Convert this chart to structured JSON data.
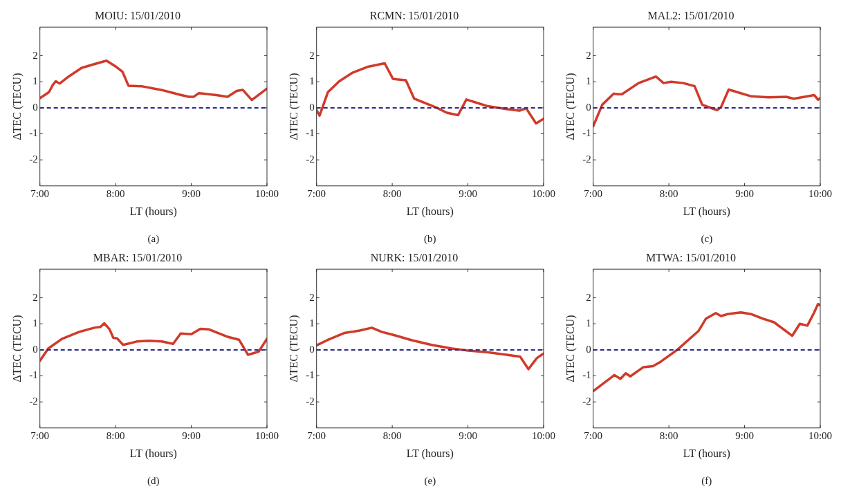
{
  "chart_data": [
    {
      "type": "line",
      "title": "MOIU: 15/01/2010",
      "xlabel": "LT (hours)",
      "ylabel": "ΔTEC (TECU)",
      "annotations": [
        "(a)"
      ],
      "xlim": [
        7,
        10
      ],
      "ylim": [
        -3,
        3.1
      ],
      "xticks": [
        {
          "value": 7,
          "label": "7:00"
        },
        {
          "value": 8,
          "label": "8:00"
        },
        {
          "value": 9,
          "label": "9:00"
        },
        {
          "value": 10,
          "label": "10:00"
        }
      ],
      "yticks": [
        -2,
        -1,
        0,
        1,
        2
      ],
      "grid": false,
      "legend": false,
      "marker": "none",
      "line_style": "solid",
      "ref_lines": [
        {
          "axis": "y",
          "value": 0,
          "color": "#2b2b8c",
          "line_style": "dashed"
        }
      ],
      "series": [
        {
          "color": "#d03a2a",
          "x": [
            7.0,
            7.12,
            7.17,
            7.21,
            7.26,
            7.38,
            7.55,
            7.71,
            7.88,
            8.01,
            8.09,
            8.17,
            8.34,
            8.6,
            8.84,
            8.97,
            9.03,
            9.1,
            9.17,
            9.33,
            9.48,
            9.6,
            9.68,
            9.8,
            10.0
          ],
          "values": [
            0.37,
            0.6,
            0.88,
            1.02,
            0.93,
            1.2,
            1.53,
            1.67,
            1.81,
            1.57,
            1.39,
            0.85,
            0.83,
            0.69,
            0.51,
            0.42,
            0.42,
            0.56,
            0.54,
            0.49,
            0.42,
            0.65,
            0.69,
            0.3,
            0.74
          ]
        }
      ]
    },
    {
      "type": "line",
      "title": "RCMN: 15/01/2010",
      "xlabel": "LT (hours)",
      "ylabel": "ΔTEC (TECU)",
      "annotations": [
        "(b)"
      ],
      "xlim": [
        7,
        10
      ],
      "ylim": [
        -3,
        3.1
      ],
      "xticks": [
        {
          "value": 7,
          "label": "7:00"
        },
        {
          "value": 8,
          "label": "8:00"
        },
        {
          "value": 9,
          "label": "9:00"
        },
        {
          "value": 10,
          "label": "10:00"
        }
      ],
      "yticks": [
        -2,
        -1,
        0,
        1,
        2
      ],
      "grid": false,
      "legend": false,
      "marker": "none",
      "line_style": "solid",
      "ref_lines": [
        {
          "axis": "y",
          "value": 0,
          "color": "#2b2b8c",
          "line_style": "dashed"
        }
      ],
      "series": [
        {
          "color": "#d03a2a",
          "x": [
            7.0,
            7.04,
            7.15,
            7.3,
            7.47,
            7.67,
            7.9,
            8.01,
            8.06,
            8.18,
            8.29,
            8.42,
            8.59,
            8.72,
            8.87,
            8.98,
            9.25,
            9.51,
            9.68,
            9.77,
            9.9,
            10.0
          ],
          "values": [
            -0.09,
            -0.3,
            0.6,
            1.02,
            1.34,
            1.57,
            1.71,
            1.11,
            1.09,
            1.06,
            0.35,
            0.2,
            0.0,
            -0.19,
            -0.28,
            0.32,
            0.07,
            -0.05,
            -0.11,
            -0.02,
            -0.6,
            -0.42
          ]
        }
      ]
    },
    {
      "type": "line",
      "title": "MAL2: 15/01/2010",
      "xlabel": "LT (hours)",
      "ylabel": "ΔTEC (TECU)",
      "annotations": [
        "(c)"
      ],
      "xlim": [
        7,
        10
      ],
      "ylim": [
        -3,
        3.1
      ],
      "xticks": [
        {
          "value": 7,
          "label": "7:00"
        },
        {
          "value": 8,
          "label": "8:00"
        },
        {
          "value": 9,
          "label": "9:00"
        },
        {
          "value": 10,
          "label": "10:00"
        }
      ],
      "yticks": [
        -2,
        -1,
        0,
        1,
        2
      ],
      "grid": false,
      "legend": false,
      "marker": "none",
      "line_style": "solid",
      "ref_lines": [
        {
          "axis": "y",
          "value": 0,
          "color": "#2b2b8c",
          "line_style": "dashed"
        }
      ],
      "series": [
        {
          "color": "#d03a2a",
          "x": [
            7.0,
            7.12,
            7.27,
            7.33,
            7.38,
            7.6,
            7.83,
            7.93,
            8.03,
            8.19,
            8.34,
            8.44,
            8.52,
            8.64,
            8.69,
            8.79,
            9.09,
            9.32,
            9.55,
            9.65,
            9.92,
            9.97,
            10.0
          ],
          "values": [
            -0.71,
            0.12,
            0.54,
            0.52,
            0.52,
            0.95,
            1.2,
            0.95,
            1.0,
            0.95,
            0.83,
            0.12,
            0.03,
            -0.09,
            0.03,
            0.7,
            0.44,
            0.4,
            0.42,
            0.35,
            0.49,
            0.31,
            0.37
          ]
        }
      ]
    },
    {
      "type": "line",
      "title": "MBAR: 15/01/2010",
      "xlabel": "LT (hours)",
      "ylabel": "ΔTEC (TECU)",
      "annotations": [
        "(d)"
      ],
      "xlim": [
        7,
        10
      ],
      "ylim": [
        -3,
        3.1
      ],
      "xticks": [
        {
          "value": 7,
          "label": "7:00"
        },
        {
          "value": 8,
          "label": "8:00"
        },
        {
          "value": 9,
          "label": "9:00"
        },
        {
          "value": 10,
          "label": "10:00"
        }
      ],
      "yticks": [
        -2,
        -1,
        0,
        1,
        2
      ],
      "grid": false,
      "legend": false,
      "marker": "none",
      "line_style": "solid",
      "ref_lines": [
        {
          "axis": "y",
          "value": 0,
          "color": "#2b2b8c",
          "line_style": "dashed"
        }
      ],
      "series": [
        {
          "color": "#d03a2a",
          "x": [
            7.0,
            7.11,
            7.29,
            7.52,
            7.72,
            7.8,
            7.85,
            7.92,
            7.97,
            8.02,
            8.1,
            8.28,
            8.44,
            8.61,
            8.76,
            8.86,
            9.0,
            9.12,
            9.23,
            9.47,
            9.63,
            9.75,
            9.89,
            10.0
          ],
          "values": [
            -0.42,
            0.05,
            0.42,
            0.69,
            0.85,
            0.88,
            1.02,
            0.79,
            0.46,
            0.44,
            0.19,
            0.32,
            0.35,
            0.32,
            0.23,
            0.63,
            0.6,
            0.81,
            0.79,
            0.51,
            0.39,
            -0.19,
            -0.07,
            0.42
          ]
        }
      ]
    },
    {
      "type": "line",
      "title": "NURK: 15/01/2010",
      "xlabel": "LT (hours)",
      "ylabel": "ΔTEC (TECU)",
      "annotations": [
        "(e)"
      ],
      "xlim": [
        7,
        10
      ],
      "ylim": [
        -3,
        3.1
      ],
      "xticks": [
        {
          "value": 7,
          "label": "7:00"
        },
        {
          "value": 8,
          "label": "8:00"
        },
        {
          "value": 9,
          "label": "9:00"
        },
        {
          "value": 10,
          "label": "10:00"
        }
      ],
      "yticks": [
        -2,
        -1,
        0,
        1,
        2
      ],
      "grid": false,
      "legend": false,
      "marker": "none",
      "line_style": "solid",
      "ref_lines": [
        {
          "axis": "y",
          "value": 0,
          "color": "#2b2b8c",
          "line_style": "dashed"
        }
      ],
      "series": [
        {
          "color": "#d03a2a",
          "x": [
            7.0,
            7.14,
            7.37,
            7.57,
            7.73,
            7.86,
            8.03,
            8.26,
            8.52,
            8.79,
            8.98,
            9.25,
            9.51,
            9.69,
            9.8,
            9.91,
            10.0
          ],
          "values": [
            0.17,
            0.37,
            0.65,
            0.74,
            0.85,
            0.69,
            0.56,
            0.37,
            0.19,
            0.05,
            -0.02,
            -0.09,
            -0.19,
            -0.26,
            -0.74,
            -0.32,
            -0.14
          ]
        }
      ]
    },
    {
      "type": "line",
      "title": "MTWA: 15/01/2010",
      "xlabel": "LT (hours)",
      "ylabel": "ΔTEC (TECU)",
      "annotations": [
        "(f)"
      ],
      "xlim": [
        7,
        10
      ],
      "ylim": [
        -3,
        3.1
      ],
      "xticks": [
        {
          "value": 7,
          "label": "7:00"
        },
        {
          "value": 8,
          "label": "8:00"
        },
        {
          "value": 9,
          "label": "9:00"
        },
        {
          "value": 10,
          "label": "10:00"
        }
      ],
      "yticks": [
        -2,
        -1,
        0,
        1,
        2
      ],
      "grid": false,
      "legend": false,
      "marker": "none",
      "line_style": "solid",
      "ref_lines": [
        {
          "axis": "y",
          "value": 0,
          "color": "#2b2b8c",
          "line_style": "dashed"
        }
      ],
      "series": [
        {
          "color": "#d03a2a",
          "x": [
            7.0,
            7.28,
            7.36,
            7.43,
            7.49,
            7.66,
            7.79,
            7.89,
            8.11,
            8.39,
            8.49,
            8.62,
            8.69,
            8.77,
            8.95,
            9.09,
            9.25,
            9.39,
            9.63,
            9.73,
            9.83,
            9.92,
            9.97,
            10.0
          ],
          "values": [
            -1.59,
            -0.97,
            -1.11,
            -0.9,
            -1.02,
            -0.67,
            -0.63,
            -0.46,
            0.0,
            0.72,
            1.2,
            1.41,
            1.3,
            1.37,
            1.44,
            1.37,
            1.19,
            1.06,
            0.54,
            1.0,
            0.93,
            1.44,
            1.76,
            1.71
          ]
        }
      ]
    }
  ]
}
